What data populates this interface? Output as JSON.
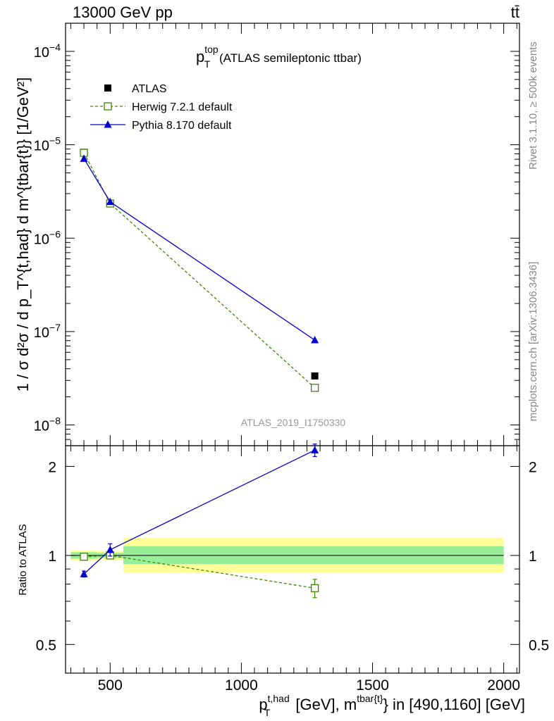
{
  "header": {
    "left": "13000 GeV pp",
    "right": "tt̄"
  },
  "side_labels": {
    "rivet": "Rivet 3.1.10, ≥ 500k events",
    "mcplots": "mcplots.cern.ch [arXiv:1306.3436]"
  },
  "watermark": "ATLAS_2019_I1750330",
  "chart_data": [
    {
      "type": "line",
      "panel": "main",
      "title": {
        "base": "p",
        "sup": "top",
        "sub": "T",
        "rest": " (ATLAS semileptonic ttbar)"
      },
      "ylabel": "1 / σ d²σ / d p_T^{t,had} d m^{tbar{t}} [1/GeV²]",
      "yscale": "log",
      "ylim": [
        6e-09,
        0.0002
      ],
      "xlim": [
        330,
        2060
      ],
      "yticks": [
        {
          "value": 1e-08,
          "label": "10",
          "exp": "−8"
        },
        {
          "value": 1e-07,
          "label": "10",
          "exp": "−7"
        },
        {
          "value": 1e-06,
          "label": "10",
          "exp": "−6"
        },
        {
          "value": 1e-05,
          "label": "10",
          "exp": "−5"
        },
        {
          "value": 0.0001,
          "label": "10",
          "exp": "−4"
        }
      ],
      "x": [
        400,
        500,
        1280
      ],
      "series": [
        {
          "name": "ATLAS",
          "color": "#000000",
          "marker": "filled-square",
          "line": "none",
          "values": [
            8.3e-06,
            2.35e-06,
            3.35e-08
          ],
          "bins": [
            [
              350,
              450
            ],
            [
              450,
              550
            ],
            [
              550,
              2000
            ]
          ]
        },
        {
          "name": "Herwig 7.2.1 default",
          "color": "#3a8a00",
          "marker": "open-square",
          "line": "dashed",
          "values": [
            8.2e-06,
            2.35e-06,
            2.5e-08
          ]
        },
        {
          "name": "Pythia 8.170 default",
          "color": "#0000d0",
          "marker": "filled-triangle",
          "line": "solid",
          "values": [
            7.1e-06,
            2.45e-06,
            8.1e-08
          ]
        }
      ],
      "legend": {
        "position": "top-left"
      }
    },
    {
      "type": "line",
      "panel": "ratio",
      "ylabel": "Ratio to ATLAS",
      "yscale": "log",
      "ylim": [
        0.4,
        2.35
      ],
      "xlim": [
        330,
        2060
      ],
      "yticks": [
        {
          "value": 0.5,
          "label": "0.5"
        },
        {
          "value": 1,
          "label": "1"
        },
        {
          "value": 2,
          "label": "2"
        }
      ],
      "xticks": [
        {
          "value": 500,
          "label": "500"
        },
        {
          "value": 1000,
          "label": "1000"
        },
        {
          "value": 1500,
          "label": "1500"
        },
        {
          "value": 2000,
          "label": "2000"
        }
      ],
      "xlabel": {
        "p": "p",
        "p_sup": "t,had",
        "p_sub": "T",
        "mid": " [GeV], m",
        "m_sup": "tbar{t}",
        "end": "} in [490,1160] [GeV]"
      },
      "x": [
        400,
        500,
        1280
      ],
      "uncertainty_bands": [
        {
          "x0": 350,
          "x1": 450,
          "inner": [
            0.975,
            1.025
          ],
          "outer": [
            0.96,
            1.04
          ]
        },
        {
          "x0": 450,
          "x1": 550,
          "inner": [
            0.98,
            1.02
          ],
          "outer": [
            0.965,
            1.035
          ]
        },
        {
          "x0": 550,
          "x1": 2000,
          "inner": [
            0.935,
            1.075
          ],
          "outer": [
            0.875,
            1.145
          ]
        }
      ],
      "series": [
        {
          "name": "Herwig 7.2.1 default",
          "color": "#3a8a00",
          "marker": "open-square",
          "line": "dashed",
          "values": [
            0.99,
            1.0,
            0.775
          ],
          "errors": [
            0.01,
            0.015,
            0.055
          ]
        },
        {
          "name": "Pythia 8.170 default",
          "color": "#0000d0",
          "marker": "filled-triangle",
          "line": "solid",
          "values": [
            0.865,
            1.045,
            2.27
          ],
          "errors": [
            0.02,
            0.05,
            0.11
          ]
        }
      ]
    }
  ]
}
